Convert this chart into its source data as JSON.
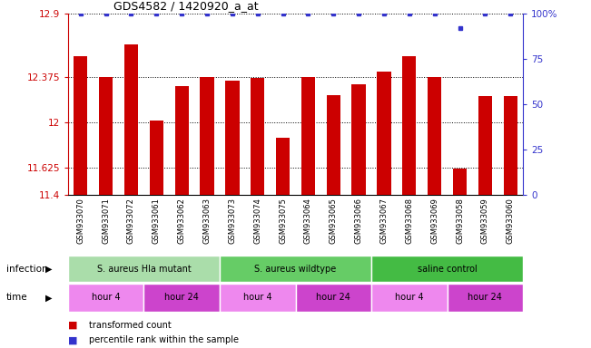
{
  "title": "GDS4582 / 1420920_a_at",
  "samples": [
    "GSM933070",
    "GSM933071",
    "GSM933072",
    "GSM933061",
    "GSM933062",
    "GSM933063",
    "GSM933073",
    "GSM933074",
    "GSM933075",
    "GSM933064",
    "GSM933065",
    "GSM933066",
    "GSM933067",
    "GSM933068",
    "GSM933069",
    "GSM933058",
    "GSM933059",
    "GSM933060"
  ],
  "bar_values": [
    12.55,
    12.38,
    12.65,
    12.02,
    12.3,
    12.375,
    12.35,
    12.37,
    11.87,
    12.375,
    12.23,
    12.32,
    12.42,
    12.55,
    12.38,
    11.62,
    12.22,
    12.22
  ],
  "percentile_values": [
    100,
    100,
    100,
    100,
    100,
    100,
    100,
    100,
    100,
    100,
    100,
    100,
    100,
    100,
    100,
    92,
    100,
    100
  ],
  "ylim_left": [
    11.4,
    12.9
  ],
  "ylim_right": [
    0,
    100
  ],
  "yticks_left": [
    11.4,
    11.625,
    12.0,
    12.375,
    12.9
  ],
  "yticks_right": [
    0,
    25,
    50,
    75,
    100
  ],
  "ytick_labels_left": [
    "11.4",
    "11.625",
    "12",
    "12.375",
    "12.9"
  ],
  "ytick_labels_right": [
    "0",
    "25",
    "50",
    "75",
    "100%"
  ],
  "bar_color": "#cc0000",
  "dot_color": "#3333cc",
  "sample_bg_color": "#d3d3d3",
  "infection_groups": [
    {
      "label": "S. aureus Hla mutant",
      "start": 0,
      "end": 6,
      "color": "#aaddaa"
    },
    {
      "label": "S. aureus wildtype",
      "start": 6,
      "end": 12,
      "color": "#66cc66"
    },
    {
      "label": "saline control",
      "start": 12,
      "end": 18,
      "color": "#44bb44"
    }
  ],
  "time_groups": [
    {
      "label": "hour 4",
      "start": 0,
      "end": 3,
      "color": "#ee88ee"
    },
    {
      "label": "hour 24",
      "start": 3,
      "end": 6,
      "color": "#cc44cc"
    },
    {
      "label": "hour 4",
      "start": 6,
      "end": 9,
      "color": "#ee88ee"
    },
    {
      "label": "hour 24",
      "start": 9,
      "end": 12,
      "color": "#cc44cc"
    },
    {
      "label": "hour 4",
      "start": 12,
      "end": 15,
      "color": "#ee88ee"
    },
    {
      "label": "hour 24",
      "start": 15,
      "end": 18,
      "color": "#cc44cc"
    }
  ],
  "infection_label": "infection",
  "time_label": "time",
  "legend_bar_label": "transformed count",
  "legend_dot_label": "percentile rank within the sample",
  "left_axis_color": "#cc0000",
  "right_axis_color": "#3333cc"
}
